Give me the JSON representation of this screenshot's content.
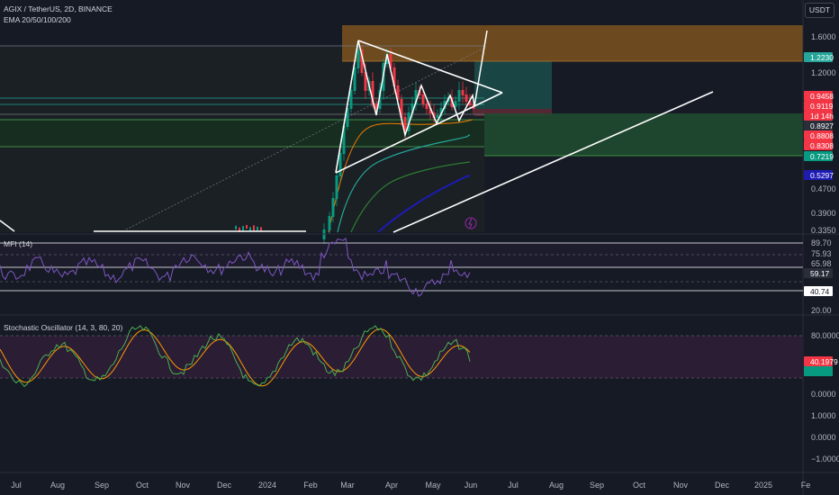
{
  "header": {
    "symbol_line": "AGIX / TetherUS, 2D, BINANCE",
    "indicator_line": "EMA 20/50/100/200",
    "currency_button": "USDT"
  },
  "price_axis": {
    "ticks": [
      "1.6000",
      "1.2000",
      "0.4700",
      "0.3900",
      "0.3350"
    ],
    "tags": [
      {
        "name": "tag-1-2230",
        "text": "1.2230",
        "bg": "#26a69a",
        "fg": "#ffffff"
      },
      {
        "name": "tag-0-9458",
        "text": "0.9458",
        "bg": "#f23645",
        "fg": "#ffffff"
      },
      {
        "name": "tag-0-9119",
        "text": "0.9119",
        "bg": "#f23645",
        "fg": "#ffffff"
      },
      {
        "name": "tag-countdown",
        "text": "1d 14h",
        "bg": "#f23645",
        "fg": "#ffffff"
      },
      {
        "name": "tag-0-8927",
        "text": "0.8927",
        "bg": "#2a2e39",
        "fg": "#ffffff"
      },
      {
        "name": "tag-0-8808",
        "text": "0.8808",
        "bg": "#f23645",
        "fg": "#ffffff"
      },
      {
        "name": "tag-0-8308",
        "text": "0.8308",
        "bg": "#f23645",
        "fg": "#ffffff"
      },
      {
        "name": "tag-0-7219",
        "text": "0.7219",
        "bg": "#089981",
        "fg": "#ffffff"
      },
      {
        "name": "tag-0-5297",
        "text": "0.5297",
        "bg": "#1e1bb3",
        "fg": "#ffffff"
      }
    ]
  },
  "mfi": {
    "title": "MFI (14)",
    "ticks": [
      "89.70",
      "75.93",
      "65.98",
      "20.00"
    ],
    "tags": [
      {
        "name": "tag-59-17",
        "text": "59.17",
        "bg": "#2a2e39",
        "fg": "#ffffff"
      },
      {
        "name": "tag-40-74",
        "text": "40.74",
        "bg": "#ffffff",
        "fg": "#131722"
      }
    ]
  },
  "stoch": {
    "title": "Stochastic Oscillator (14, 3, 80, 20)",
    "ticks": [
      "80.0000",
      "0.0000",
      "1.0000",
      "0.0000",
      "−1.0000"
    ],
    "tags": [
      {
        "name": "tag-40-1979",
        "text": "40.1979",
        "bg": "#f23645",
        "fg": "#ffffff"
      },
      {
        "name": "tag-stoch-green",
        "text": "",
        "bg": "#089981",
        "fg": "#ffffff"
      }
    ]
  },
  "time_axis": [
    "Jul",
    "Aug",
    "Sep",
    "Oct",
    "Nov",
    "Dec",
    "2024",
    "Feb",
    "Mar",
    "Apr",
    "May",
    "Jun",
    "Jul",
    "Aug",
    "Sep",
    "Oct",
    "Nov",
    "Dec",
    "2025",
    "Fe"
  ],
  "colors": {
    "background": "#161a25",
    "bull": "#089981",
    "bear": "#f23645",
    "stoch_k": "#4caf50",
    "stoch_d": "#ff9800",
    "mfi_line": "#7e57c2",
    "supply_zone": "#f7931a",
    "position_long": "#26a69a",
    "ema_20": "#f57c00",
    "ema_50": "#26a69a",
    "ema_100": "#2e7d32",
    "ema_200": "#1e1bb3"
  }
}
